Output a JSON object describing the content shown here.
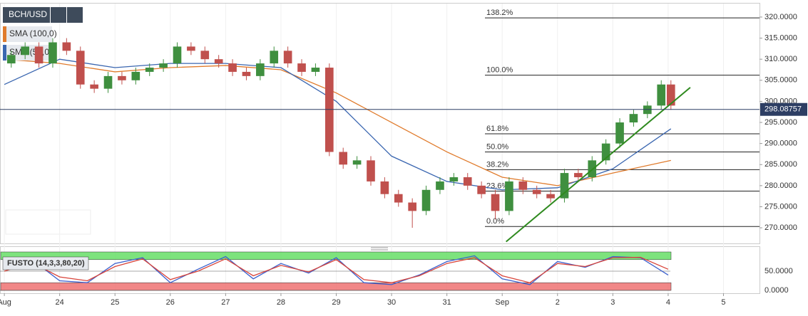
{
  "chart_data": [
    {
      "type": "candlestick",
      "title": "BCH/USD",
      "x": [
        0.125,
        0.375,
        0.625,
        0.875,
        1.125,
        1.375,
        1.625,
        1.875,
        2.125,
        2.375,
        2.625,
        2.875,
        3.125,
        3.375,
        3.625,
        3.875,
        4.125,
        4.375,
        4.625,
        4.875,
        5.125,
        5.375,
        5.625,
        5.875,
        6.125,
        6.375,
        6.625,
        6.875,
        7.125,
        7.375,
        7.625,
        7.875,
        8.125,
        8.375,
        8.625,
        8.875,
        9.125,
        9.375,
        9.625,
        9.875,
        10.125,
        10.375,
        10.625,
        10.875,
        11.125,
        11.375,
        11.625,
        11.875,
        12.05
      ],
      "open": [
        309,
        311,
        313,
        309,
        314,
        312,
        304,
        303,
        306,
        305,
        307,
        308,
        309,
        313,
        312,
        310,
        309,
        307,
        306,
        309,
        312,
        309,
        307,
        308,
        288,
        285,
        286,
        281,
        278,
        276,
        274,
        279,
        281,
        282,
        280,
        278,
        274,
        281,
        279,
        278,
        277,
        283,
        282,
        286,
        290,
        295,
        297,
        299,
        304
      ],
      "high": [
        312,
        314,
        314,
        315,
        315,
        313,
        305,
        307,
        307,
        308,
        309,
        310,
        314,
        314,
        313,
        311,
        310,
        308,
        310,
        313,
        313,
        310,
        309,
        309,
        289,
        287,
        287,
        282,
        279,
        277,
        280,
        282,
        283,
        283,
        281,
        279,
        282,
        282,
        280,
        279,
        284,
        284,
        287,
        291,
        296,
        298,
        300,
        305,
        305
      ],
      "low": [
        308,
        310,
        308,
        308,
        311,
        303,
        302,
        302,
        304,
        304,
        306,
        307,
        308,
        311,
        309,
        308,
        306,
        305,
        305,
        308,
        308,
        306,
        306,
        287,
        284,
        284,
        280,
        277,
        275,
        270,
        273,
        278,
        280,
        279,
        277,
        272,
        273,
        278,
        277,
        276,
        276,
        281,
        281,
        285,
        289,
        294,
        296,
        298,
        298
      ],
      "close": [
        311,
        313,
        309,
        314,
        312,
        304,
        303,
        306,
        305,
        307,
        308,
        309,
        313,
        312,
        310,
        309,
        307,
        306,
        309,
        312,
        309,
        307,
        308,
        288,
        285,
        286,
        281,
        278,
        276,
        274,
        279,
        281,
        282,
        280,
        278,
        274,
        281,
        279,
        278,
        277,
        283,
        282,
        286,
        290,
        295,
        297,
        299,
        304,
        299
      ],
      "up_color": "#3f8f3f",
      "down_color": "#c0504d",
      "xlim": [
        -0.04,
        13.69
      ],
      "xticks": [
        {
          "value": 0,
          "label": "Aug"
        },
        {
          "value": 1,
          "label": "24"
        },
        {
          "value": 2,
          "label": "25"
        },
        {
          "value": 3,
          "label": "26"
        },
        {
          "value": 4,
          "label": "27"
        },
        {
          "value": 5,
          "label": "28"
        },
        {
          "value": 6,
          "label": "29"
        },
        {
          "value": 7,
          "label": "30"
        },
        {
          "value": 8,
          "label": "31"
        },
        {
          "value": 9,
          "label": "Sep"
        },
        {
          "value": 10,
          "label": "2"
        },
        {
          "value": 11,
          "label": "3"
        },
        {
          "value": 12,
          "label": "4"
        },
        {
          "value": 13,
          "label": "5"
        }
      ],
      "ylim": [
        266.3,
        323.2
      ],
      "yticks": [
        {
          "value": 270,
          "label": "270.0000"
        },
        {
          "value": 275,
          "label": "275.0000"
        },
        {
          "value": 280,
          "label": "280.0000"
        },
        {
          "value": 285,
          "label": "285.0000"
        },
        {
          "value": 290,
          "label": "290.0000"
        },
        {
          "value": 295,
          "label": "295.0000"
        },
        {
          "value": 300,
          "label": "300.0000"
        },
        {
          "value": 305,
          "label": "305.0000"
        },
        {
          "value": 310,
          "label": "310.0000"
        },
        {
          "value": 315,
          "label": "315.0000"
        },
        {
          "value": 320,
          "label": "320.0000"
        }
      ],
      "series": [
        {
          "name": "SMA (100,0)",
          "color": "#e07b2c",
          "x": [
            0,
            1,
            2,
            3,
            4,
            5,
            6,
            7,
            8,
            9,
            10,
            11,
            12.05
          ],
          "values": [
            310,
            309,
            307,
            308,
            308.5,
            307.5,
            302,
            295,
            288,
            282,
            280,
            283,
            286
          ]
        },
        {
          "name": "SMA (50,0)",
          "color": "#3a66b0",
          "x": [
            0,
            1,
            2,
            3,
            4,
            5,
            6,
            7,
            8,
            9,
            10,
            11,
            12.05
          ],
          "values": [
            304,
            310,
            308,
            309,
            309,
            308,
            300,
            287,
            281,
            279,
            279.5,
            284,
            293.5
          ]
        }
      ],
      "fib_levels": [
        {
          "label": "138.2%",
          "value": 319.8
        },
        {
          "label": "100.0%",
          "value": 306.2
        },
        {
          "label": "61.8%",
          "value": 292.3
        },
        {
          "label": "50.0%",
          "value": 288
        },
        {
          "label": "38.2%",
          "value": 283.8
        },
        {
          "label": "23.6%",
          "value": 278.7
        },
        {
          "label": "0.0%",
          "value": 270.3
        }
      ],
      "last_price": 298.08757,
      "trendline": {
        "color": "#2f8a1f",
        "x": [
          9.07,
          12.4
        ],
        "values": [
          266.7,
          303.3
        ]
      }
    },
    {
      "type": "line",
      "title": "FUSTO (14,3,3,80,20)",
      "x": [
        0,
        0.5,
        1,
        1.5,
        2,
        2.5,
        3,
        3.5,
        4,
        4.5,
        5,
        5.5,
        6,
        6.5,
        7,
        7.5,
        8,
        8.5,
        9,
        9.5,
        10,
        10.5,
        11,
        11.5,
        12
      ],
      "series": [
        {
          "color": "#3a5fcd",
          "values": [
            55,
            80,
            25,
            20,
            70,
            85,
            20,
            55,
            88,
            30,
            70,
            45,
            85,
            20,
            15,
            40,
            75,
            90,
            30,
            15,
            75,
            60,
            88,
            85,
            40
          ]
        },
        {
          "color": "#d9443a",
          "values": [
            50,
            72,
            35,
            25,
            62,
            82,
            28,
            50,
            82,
            38,
            65,
            48,
            80,
            28,
            20,
            38,
            70,
            85,
            38,
            20,
            70,
            62,
            85,
            86,
            55
          ]
        }
      ],
      "ylim": [
        -7.4,
        114.8
      ],
      "yticks": [
        {
          "value": 50,
          "label": "50.0000"
        },
        {
          "value": 0,
          "label": "0.0000"
        }
      ],
      "bands": [
        {
          "range": [
            80,
            100
          ],
          "color": "#6fe06f"
        },
        {
          "range": [
            0,
            20
          ],
          "color": "#f07a7a"
        }
      ]
    }
  ]
}
